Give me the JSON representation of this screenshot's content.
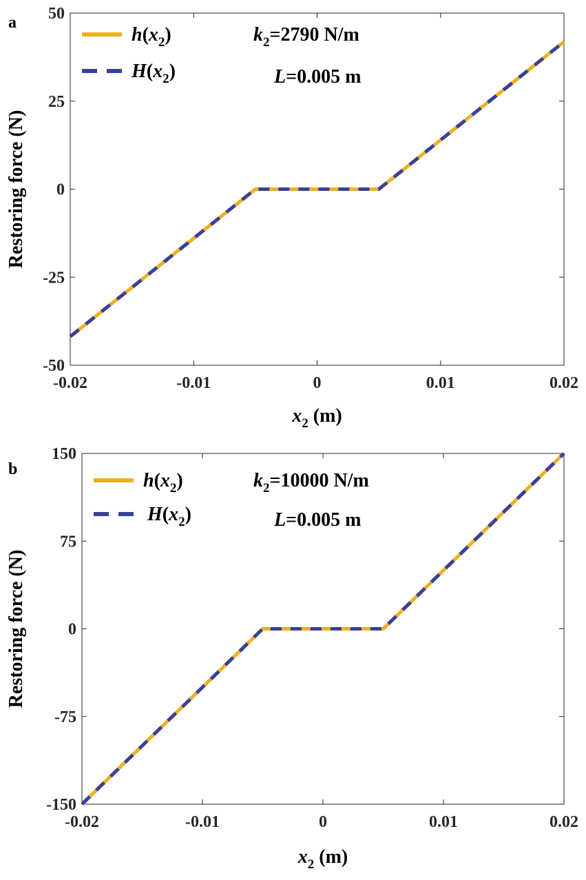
{
  "colors": {
    "h": "#EDB120",
    "H": "#3A3F99",
    "axis": "#262626"
  },
  "chart_data": [
    {
      "type": "line",
      "panel_label": "a",
      "xlabel_main": "x",
      "xlabel_sub": "2",
      "xlabel_unit": " (m)",
      "ylabel": "Restoring force (N)",
      "xlim": [
        -0.02,
        0.02
      ],
      "ylim": [
        -50,
        50
      ],
      "xticks": [
        "-0.02",
        "-0.01",
        "0",
        "0.01",
        "0.02"
      ],
      "xtick_values": [
        -0.02,
        -0.01,
        0,
        0.01,
        0.02
      ],
      "yticks": [
        "50",
        "25",
        "0",
        "-25",
        "-50"
      ],
      "ytick_values": [
        50,
        25,
        0,
        -25,
        -50
      ],
      "annotations": {
        "k_label": "k",
        "k_sub": "2",
        "k_value": "=2790 N/m",
        "L_label": "L",
        "L_value": "=0.005 m"
      },
      "legend": {
        "placement": "top-left",
        "entries": [
          {
            "main": "h",
            "arg": "x",
            "sub": "2",
            "style": "solid"
          },
          {
            "main": "H",
            "arg": "x",
            "sub": "2",
            "style": "dashed"
          }
        ]
      },
      "series": [
        {
          "name": "h(x2)",
          "style": "solid",
          "x": [
            -0.02,
            -0.005,
            0.005,
            0.02
          ],
          "y": [
            -41.85,
            0,
            0,
            41.85
          ]
        },
        {
          "name": "H(x2)",
          "style": "dashed",
          "x": [
            -0.02,
            -0.005,
            0.005,
            0.02
          ],
          "y": [
            -41.85,
            0,
            0,
            41.85
          ]
        }
      ]
    },
    {
      "type": "line",
      "panel_label": "b",
      "xlabel_main": "x",
      "xlabel_sub": "2",
      "xlabel_unit": " (m)",
      "ylabel": "Restoring force (N)",
      "xlim": [
        -0.02,
        0.02
      ],
      "ylim": [
        -150,
        150
      ],
      "xticks": [
        "-0.02",
        "-0.01",
        "0",
        "0.01",
        "0.02"
      ],
      "xtick_values": [
        -0.02,
        -0.01,
        0,
        0.01,
        0.02
      ],
      "yticks": [
        "150",
        "75",
        "0",
        "-75",
        "-150"
      ],
      "ytick_values": [
        150,
        75,
        0,
        -75,
        -150
      ],
      "annotations": {
        "k_label": "k",
        "k_sub": "2",
        "k_value": "=10000 N/m",
        "L_label": "L",
        "L_value": "=0.005 m"
      },
      "legend": {
        "placement": "top-left",
        "entries": [
          {
            "main": "h",
            "arg": "x",
            "sub": "2",
            "style": "solid"
          },
          {
            "main": "H",
            "arg": "x",
            "sub": "2",
            "style": "dashed"
          }
        ]
      },
      "series": [
        {
          "name": "h(x2)",
          "style": "solid",
          "x": [
            -0.02,
            -0.005,
            0.005,
            0.02
          ],
          "y": [
            -150,
            0,
            0,
            150
          ]
        },
        {
          "name": "H(x2)",
          "style": "dashed",
          "x": [
            -0.02,
            -0.005,
            0.005,
            0.02
          ],
          "y": [
            -150,
            0,
            0,
            150
          ]
        }
      ]
    }
  ]
}
